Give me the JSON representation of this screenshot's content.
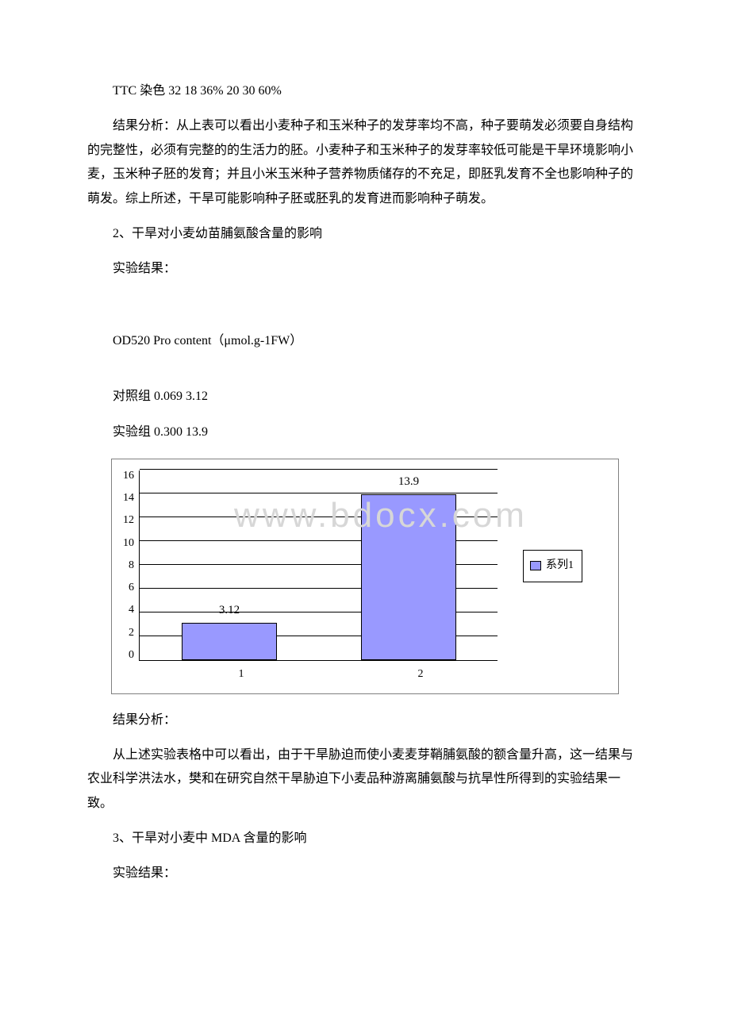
{
  "paragraphs": {
    "p1": "TTC 染色 32 18 36%   20 30 60%",
    "p2": "结果分析：从上表可以看出小麦种子和玉米种子的发芽率均不高，种子要萌发必须要自身结构的完整性，必须有完整的的生活力的胚。小麦种子和玉米种子的发芽率较低可能是干旱环境影响小麦，玉米种子胚的发育；并且小米玉米种子营养物质储存的不充足，即胚乳发育不全也影响种子的萌发。综上所述，干旱可能影响种子胚或胚乳的发育进而影响种子萌发。",
    "p3": "2、干旱对小麦幼苗脯氨酸含量的影响",
    "p4": "实验结果：",
    "p5": "  OD520  Pro content（μmol.g-1FW）",
    "p6": "对照组  0.069  3.12",
    "p7": "实验组 0.300  13.9",
    "p8": "结果分析：",
    "p9": "从上述实验表格中可以看出，由于干旱胁迫而使小麦麦芽鞘脯氨酸的额含量升高，这一结果与农业科学洪法水，樊和在研究自然干旱胁迫下小麦品种游离脯氨酸与抗旱性所得到的实验结果一致。",
    "p10": "3、干旱对小麦中 MDA 含量的影响",
    "p11": "实验结果："
  },
  "chart": {
    "type": "bar",
    "categories": [
      "1",
      "2"
    ],
    "values": [
      3.12,
      13.9
    ],
    "value_labels": [
      "3.12",
      "13.9"
    ],
    "bar_color": "#9999ff",
    "ylim_max": 16,
    "yticks": [
      "16",
      "14",
      "12",
      "10",
      "8",
      "6",
      "4",
      "2",
      "0"
    ],
    "grid_color": "#000000",
    "legend_label": "系列1",
    "legend_swatch_color": "#9999ff"
  },
  "watermark": "www.bdocx.com"
}
